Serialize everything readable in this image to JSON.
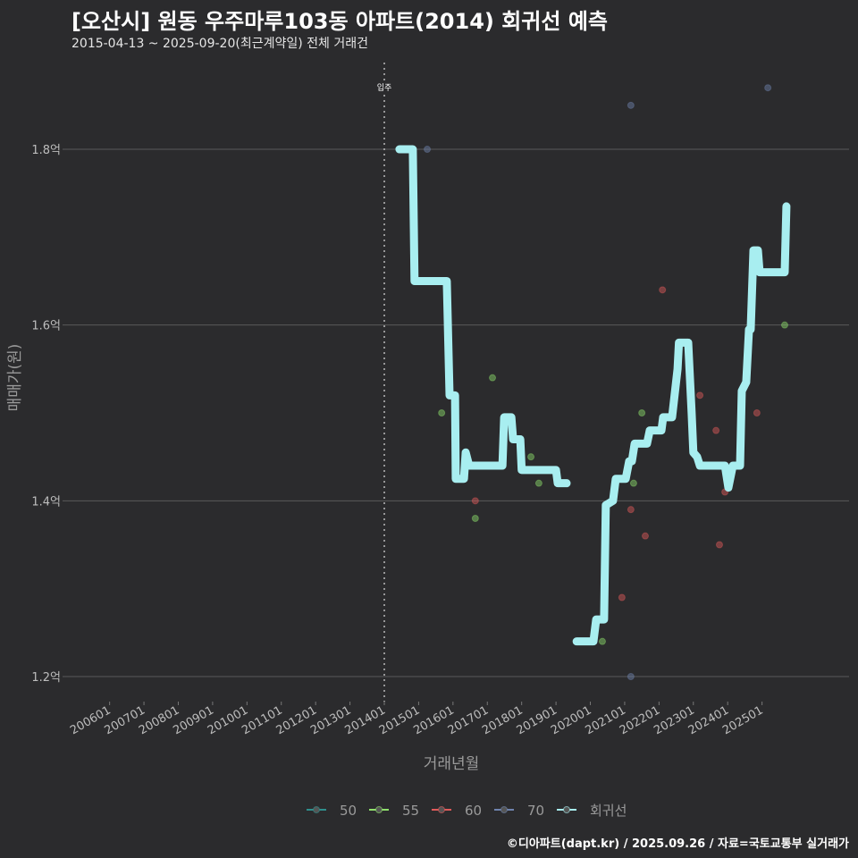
{
  "title": "[오산시] 원동 우주마루103동 아파트(2014) 회귀선 예측",
  "subtitle": "2015-04-13 ~ 2025-09-20(최근계약일) 전체 거래건",
  "footer": "©디아파트(dapt.kr) / 2025.09.26 / 자료=국토교통부 실거래가",
  "chart_data": {
    "type": "scatter+line",
    "xlabel": "거래년월",
    "ylabel": "매매가(원)",
    "xlim": [
      2005.2,
      2026.4
    ],
    "ylim": [
      1.17,
      1.895
    ],
    "x_ticks": [
      {
        "value": 2006,
        "label": "200601"
      },
      {
        "value": 2007,
        "label": "200701"
      },
      {
        "value": 2008,
        "label": "200801"
      },
      {
        "value": 2009,
        "label": "200901"
      },
      {
        "value": 2010,
        "label": "201001"
      },
      {
        "value": 2011,
        "label": "201101"
      },
      {
        "value": 2012,
        "label": "201201"
      },
      {
        "value": 2013,
        "label": "201301"
      },
      {
        "value": 2014,
        "label": "201401"
      },
      {
        "value": 2015,
        "label": "201501"
      },
      {
        "value": 2016,
        "label": "201601"
      },
      {
        "value": 2017,
        "label": "201701"
      },
      {
        "value": 2018,
        "label": "201801"
      },
      {
        "value": 2019,
        "label": "201901"
      },
      {
        "value": 2020,
        "label": "202001"
      },
      {
        "value": 2021,
        "label": "202101"
      },
      {
        "value": 2022,
        "label": "202201"
      },
      {
        "value": 2023,
        "label": "202301"
      },
      {
        "value": 2024,
        "label": "202401"
      },
      {
        "value": 2025,
        "label": "202501"
      }
    ],
    "y_ticks": [
      {
        "value": 1.2,
        "label": "1.2억"
      },
      {
        "value": 1.4,
        "label": "1.4억"
      },
      {
        "value": 1.6,
        "label": "1.6억"
      },
      {
        "value": 1.8,
        "label": "1.8억"
      }
    ],
    "annotation": {
      "x": 2014,
      "label": "입주"
    },
    "grid": true,
    "legend_position": "bottom",
    "legend": [
      {
        "name": "50",
        "color": "#2f8f8c"
      },
      {
        "name": "55",
        "color": "#8fe06c"
      },
      {
        "name": "60",
        "color": "#e05a5a"
      },
      {
        "name": "70",
        "color": "#6e83ad"
      },
      {
        "name": "회귀선",
        "color": "#a8eef0"
      }
    ],
    "points": [
      {
        "x": 2015.25,
        "y": 1.8,
        "series": "70"
      },
      {
        "x": 2021.18,
        "y": 1.85,
        "series": "70"
      },
      {
        "x": 2025.17,
        "y": 1.87,
        "series": "70"
      },
      {
        "x": 2021.18,
        "y": 1.2,
        "series": "70"
      },
      {
        "x": 2015.67,
        "y": 1.5,
        "series": "55"
      },
      {
        "x": 2017.15,
        "y": 1.54,
        "series": "55"
      },
      {
        "x": 2016.65,
        "y": 1.38,
        "series": "55"
      },
      {
        "x": 2016.65,
        "y": 1.4,
        "series": "60"
      },
      {
        "x": 2018.27,
        "y": 1.45,
        "series": "55"
      },
      {
        "x": 2018.5,
        "y": 1.42,
        "series": "55"
      },
      {
        "x": 2020.35,
        "y": 1.24,
        "series": "55"
      },
      {
        "x": 2020.92,
        "y": 1.29,
        "series": "60"
      },
      {
        "x": 2021.18,
        "y": 1.39,
        "series": "60"
      },
      {
        "x": 2021.26,
        "y": 1.42,
        "series": "55"
      },
      {
        "x": 2021.5,
        "y": 1.5,
        "series": "55"
      },
      {
        "x": 2021.6,
        "y": 1.36,
        "series": "60"
      },
      {
        "x": 2022.1,
        "y": 1.64,
        "series": "60"
      },
      {
        "x": 2023.19,
        "y": 1.52,
        "series": "60"
      },
      {
        "x": 2023.66,
        "y": 1.48,
        "series": "60"
      },
      {
        "x": 2023.76,
        "y": 1.35,
        "series": "60"
      },
      {
        "x": 2023.92,
        "y": 1.41,
        "series": "60"
      },
      {
        "x": 2024.85,
        "y": 1.5,
        "series": "60"
      },
      {
        "x": 2025.66,
        "y": 1.6,
        "series": "55"
      }
    ],
    "regression_segments": [
      [
        [
          2014.44,
          1.8
        ],
        [
          2014.83,
          1.8
        ],
        [
          2014.88,
          1.65
        ],
        [
          2015.82,
          1.65
        ],
        [
          2015.9,
          1.52
        ],
        [
          2016.06,
          1.52
        ],
        [
          2016.08,
          1.425
        ],
        [
          2016.32,
          1.425
        ],
        [
          2016.37,
          1.455
        ],
        [
          2016.47,
          1.44
        ],
        [
          2017.44,
          1.44
        ],
        [
          2017.49,
          1.495
        ],
        [
          2017.7,
          1.495
        ],
        [
          2017.75,
          1.47
        ],
        [
          2017.96,
          1.47
        ],
        [
          2018.0,
          1.435
        ],
        [
          2019.0,
          1.435
        ],
        [
          2019.05,
          1.42
        ],
        [
          2019.31,
          1.42
        ]
      ],
      [
        [
          2019.6,
          1.24
        ],
        [
          2020.09,
          1.24
        ],
        [
          2020.17,
          1.265
        ],
        [
          2020.4,
          1.265
        ],
        [
          2020.45,
          1.395
        ],
        [
          2020.66,
          1.4
        ],
        [
          2020.74,
          1.425
        ],
        [
          2021.03,
          1.425
        ],
        [
          2021.13,
          1.445
        ],
        [
          2021.21,
          1.445
        ],
        [
          2021.29,
          1.465
        ],
        [
          2021.65,
          1.465
        ],
        [
          2021.73,
          1.48
        ],
        [
          2022.07,
          1.48
        ],
        [
          2022.12,
          1.495
        ],
        [
          2022.38,
          1.495
        ],
        [
          2022.54,
          1.55
        ],
        [
          2022.58,
          1.58
        ],
        [
          2022.85,
          1.58
        ],
        [
          2022.95,
          1.5
        ],
        [
          2023.0,
          1.455
        ],
        [
          2023.11,
          1.45
        ],
        [
          2023.19,
          1.44
        ],
        [
          2023.92,
          1.44
        ],
        [
          2024.02,
          1.415
        ],
        [
          2024.15,
          1.44
        ],
        [
          2024.36,
          1.44
        ],
        [
          2024.41,
          1.525
        ],
        [
          2024.54,
          1.535
        ],
        [
          2024.62,
          1.595
        ],
        [
          2024.67,
          1.595
        ],
        [
          2024.75,
          1.685
        ],
        [
          2024.88,
          1.685
        ],
        [
          2024.93,
          1.66
        ],
        [
          2025.66,
          1.66
        ],
        [
          2025.71,
          1.735
        ]
      ]
    ]
  }
}
